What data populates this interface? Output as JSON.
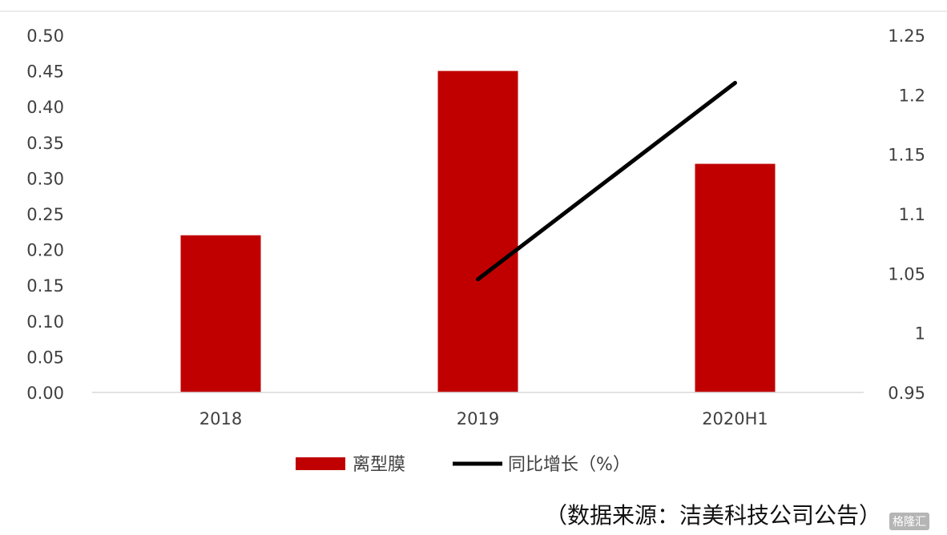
{
  "chart_data": {
    "type": "bar",
    "categories": [
      "2018",
      "2019",
      "2020H1"
    ],
    "series": [
      {
        "name": "离型膜",
        "type": "bar",
        "axis": "left",
        "values": [
          0.22,
          0.45,
          0.32
        ],
        "color": "#c00000"
      },
      {
        "name": "同比增长（%）",
        "type": "line",
        "axis": "right",
        "values": [
          null,
          1.045,
          1.21
        ],
        "color": "#000000"
      }
    ],
    "y_left": {
      "ylim": [
        0.0,
        0.5
      ],
      "ticks": [
        "0.00",
        "0.05",
        "0.10",
        "0.15",
        "0.20",
        "0.25",
        "0.30",
        "0.35",
        "0.40",
        "0.45",
        "0.50"
      ]
    },
    "y_right": {
      "ylim": [
        0.95,
        1.25
      ],
      "ticks": [
        "0.95",
        "1",
        "1.05",
        "1.1",
        "1.15",
        "1.2",
        "1.25"
      ]
    },
    "grid": false,
    "legend": "bottom"
  },
  "source_note": "（数据来源：洁美科技公司公告）",
  "watermark": "格隆汇"
}
